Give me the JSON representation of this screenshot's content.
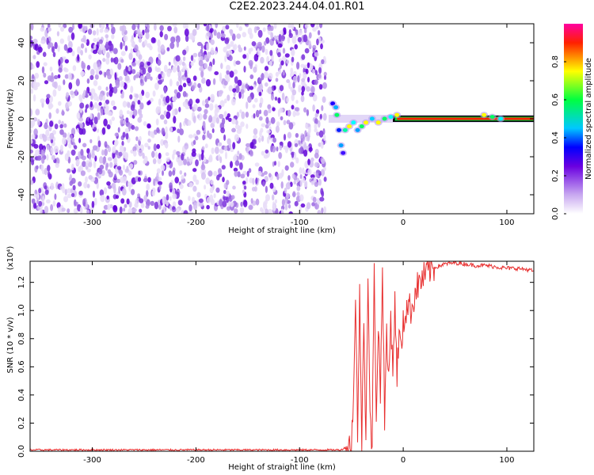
{
  "title": "C2E2.2023.244.04.01.R01",
  "chart_data": [
    {
      "type": "heatmap",
      "xlabel": "Height of straight line (km)",
      "ylabel": "Frequency (Hz)",
      "xlim": [
        -360,
        126
      ],
      "ylim": [
        -50,
        50
      ],
      "xticks": [
        -300,
        -200,
        -100,
        0,
        100
      ],
      "yticks": [
        -40,
        -20,
        0,
        20,
        40
      ],
      "colorbar": {
        "label": "Normalized spectral amplitude",
        "range": [
          0,
          1
        ],
        "ticks": [
          0.0,
          0.2,
          0.4,
          0.6,
          0.8
        ],
        "colormap": [
          "#ffffff",
          "#6a00e0",
          "#0000ff",
          "#00c8ff",
          "#00ff40",
          "#ffff00",
          "#ff2000",
          "#ff00a0"
        ]
      },
      "regions": {
        "noise_x_range": [
          -360,
          -72
        ],
        "line_x_range": [
          -72,
          126
        ],
        "line_frequency_hz": 0
      }
    },
    {
      "type": "line",
      "xlabel": "Height of straight line (km)",
      "ylabel": "SNR (10 * v/v)",
      "y_multiplier": "(x10⁴)",
      "xlim": [
        -360,
        126
      ],
      "ylim": [
        0,
        1.35
      ],
      "xticks": [
        -300,
        -200,
        -100,
        0,
        100
      ],
      "yticks": [
        0.0,
        0.2,
        0.4,
        0.6,
        0.8,
        1.0,
        1.2
      ],
      "color": "#e83030",
      "series": [
        {
          "x": [
            -360,
            -300,
            -200,
            -100,
            -60,
            -50,
            -48,
            -46,
            -44,
            -42,
            -40,
            -38,
            -36,
            -34,
            -32,
            -30,
            -28,
            -26,
            -24,
            -22,
            -20,
            -18,
            -16,
            -14,
            -12,
            -10,
            -8,
            -6,
            -4,
            -2,
            0,
            4,
            8,
            12,
            16,
            20,
            24,
            28,
            32,
            36,
            40,
            50,
            60,
            70,
            80,
            90,
            100,
            110,
            120,
            126
          ],
          "y": [
            0.01,
            0.01,
            0.01,
            0.01,
            0.01,
            0.05,
            0.4,
            1.02,
            0.15,
            1.1,
            0.05,
            1.0,
            0.1,
            1.28,
            0.2,
            0.05,
            1.25,
            0.3,
            0.9,
            0.4,
            1.33,
            0.25,
            0.8,
            0.5,
            0.95,
            0.6,
            1.05,
            0.55,
            0.85,
            0.7,
            0.9,
            1.05,
            1.0,
            1.15,
            1.2,
            1.24,
            1.28,
            1.3,
            1.31,
            1.32,
            1.33,
            1.34,
            1.33,
            1.32,
            1.32,
            1.31,
            1.3,
            1.3,
            1.29,
            1.28
          ]
        }
      ]
    }
  ]
}
